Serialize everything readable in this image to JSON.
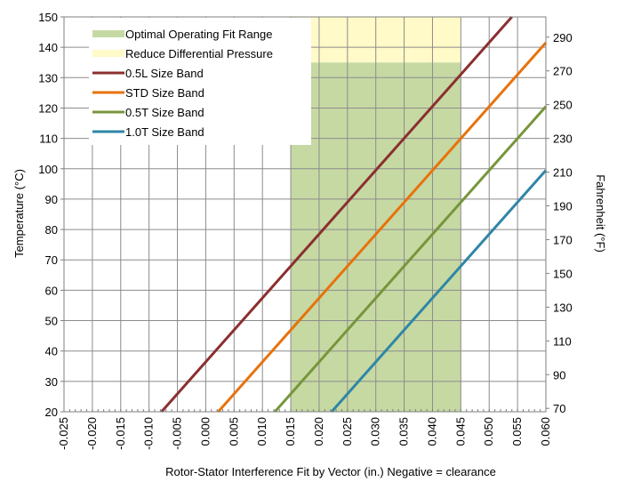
{
  "chart_data": {
    "type": "line",
    "xlabel": "Rotor-Stator Interference Fit by Vector (in.) Negative = clearance",
    "ylabel": "Temperature (°C)",
    "y2label": "Fahrenheit (°F)",
    "xlim": [
      -0.025,
      0.06
    ],
    "ylim": [
      20,
      150
    ],
    "y2lim": [
      68,
      302
    ],
    "x_ticks": [
      "-0.025",
      "-0.020",
      "-0.015",
      "-0.010",
      "-0.005",
      "0.000",
      "0.005",
      "0.010",
      "0.015",
      "0.020",
      "0.025",
      "0.030",
      "0.035",
      "0.040",
      "0.045",
      "0.050",
      "0.055",
      "0.060"
    ],
    "y_ticks": [
      "20",
      "30",
      "40",
      "50",
      "60",
      "70",
      "80",
      "90",
      "100",
      "110",
      "120",
      "130",
      "140",
      "150"
    ],
    "y2_ticks": [
      "70",
      "90",
      "110",
      "130",
      "150",
      "170",
      "190",
      "210",
      "230",
      "250",
      "270",
      "290"
    ],
    "grid": true,
    "legend_position": "top-left",
    "regions": [
      {
        "name": "Optimal Operating Fit Range",
        "x": [
          0.015,
          0.045
        ],
        "y": [
          20,
          135
        ],
        "color": "#c6d9a3"
      },
      {
        "name": "Reduce Differential Pressure",
        "x": [
          0.015,
          0.045
        ],
        "y": [
          135,
          150
        ],
        "color": "#fffac8"
      }
    ],
    "series": [
      {
        "name": "0.5L Size Band",
        "color": "#8b2f2f",
        "x": [
          -0.0078,
          0.054
        ],
        "y": [
          20,
          150
        ]
      },
      {
        "name": "STD Size Band",
        "color": "#e8720c",
        "x": [
          0.0022,
          0.06
        ],
        "y": [
          20,
          141.5
        ]
      },
      {
        "name": "0.5T Size Band",
        "color": "#77953a",
        "x": [
          0.0122,
          0.06
        ],
        "y": [
          20,
          120.5
        ]
      },
      {
        "name": "1.0T Size Band",
        "color": "#2f86a6",
        "x": [
          0.0222,
          0.06
        ],
        "y": [
          20,
          99.5
        ]
      }
    ]
  }
}
